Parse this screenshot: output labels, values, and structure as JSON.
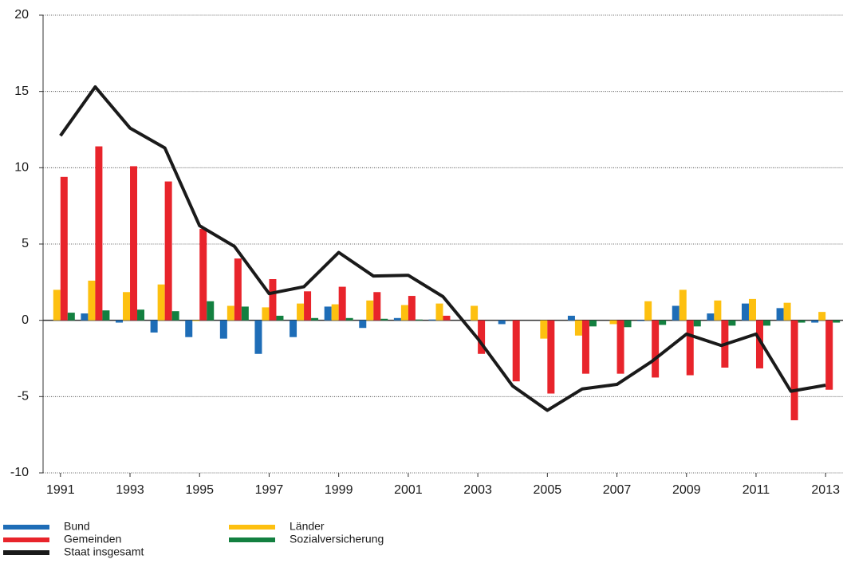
{
  "chart_data": {
    "type": "bar",
    "x": [
      1991,
      1992,
      1993,
      1994,
      1995,
      1996,
      1997,
      1998,
      1999,
      2000,
      2001,
      2002,
      2003,
      2004,
      2005,
      2006,
      2007,
      2008,
      2009,
      2010,
      2011,
      2012,
      2013
    ],
    "xlim": [
      1990.5,
      2013.5
    ],
    "xticks": [
      1991,
      1993,
      1995,
      1997,
      1999,
      2001,
      2003,
      2005,
      2007,
      2009,
      2011,
      2013
    ],
    "ylim": [
      -10,
      20
    ],
    "yticks": [
      -10,
      -5,
      0,
      5,
      10,
      15,
      20
    ],
    "grid": true,
    "legend": "bottom",
    "series": [
      {
        "name": "Bund",
        "color": "#1e6db7",
        "values": [
          0,
          0.45,
          -0.15,
          -0.8,
          -1.1,
          -1.2,
          -2.2,
          -1.1,
          0.9,
          -0.5,
          0.15,
          0.05,
          0,
          -0.25,
          0,
          0.3,
          0,
          -0.05,
          0.95,
          0.45,
          1.1,
          0.8,
          -0.15
        ]
      },
      {
        "name": "Länder",
        "color": "#fdc010",
        "values": [
          2.0,
          2.6,
          1.85,
          2.35,
          -0.05,
          0.95,
          0.85,
          1.1,
          1.05,
          1.3,
          1.0,
          1.1,
          0.95,
          0,
          -1.2,
          -1.0,
          -0.25,
          1.25,
          2.0,
          1.3,
          1.4,
          1.15,
          0.55
        ]
      },
      {
        "name": "Gemeinden",
        "color": "#e8242b",
        "values": [
          9.4,
          11.4,
          10.1,
          9.1,
          6.0,
          4.05,
          2.7,
          1.9,
          2.2,
          1.85,
          1.6,
          0.3,
          -2.2,
          -4.0,
          -4.8,
          -3.5,
          -3.5,
          -3.75,
          -3.6,
          -3.1,
          -3.15,
          -6.55,
          -4.55
        ]
      },
      {
        "name": "Sozialversicherung",
        "color": "#138040",
        "values": [
          0.5,
          0.65,
          0.7,
          0.6,
          1.25,
          0.9,
          0.3,
          0.15,
          0.15,
          0.1,
          0.05,
          0,
          0,
          0,
          0,
          -0.4,
          -0.45,
          -0.3,
          -0.4,
          -0.35,
          -0.35,
          -0.15,
          -0.15
        ]
      },
      {
        "name": "Staat insgesamt",
        "color": "#1a1a1a",
        "type": "line",
        "values": [
          12.1,
          15.3,
          12.6,
          11.3,
          6.2,
          4.85,
          1.75,
          2.2,
          4.45,
          2.9,
          2.95,
          1.55,
          -1.2,
          -4.3,
          -5.9,
          -4.5,
          -4.2,
          -2.7,
          -0.9,
          -1.65,
          -0.9,
          -4.65,
          -4.25
        ]
      }
    ]
  }
}
